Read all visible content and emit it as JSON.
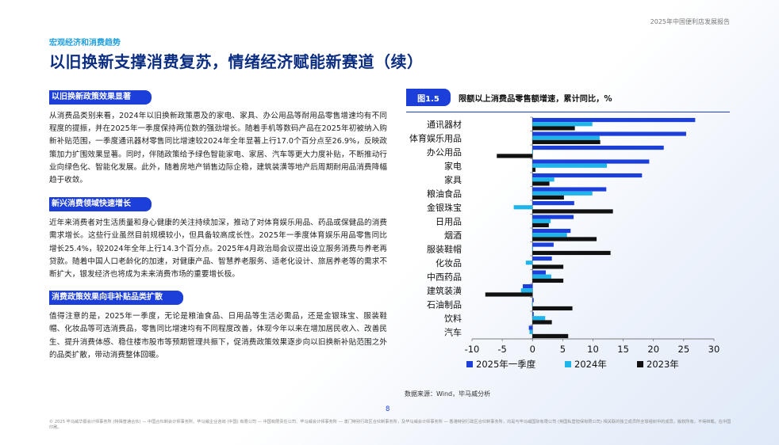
{
  "header": {
    "report_tag": "2025年中国便利店发展报告",
    "section_tag": "宏观经济和消费趋势",
    "title": "以旧换新支撑消费复苏，情绪经济赋能新赛道（续）"
  },
  "sections": [
    {
      "heading": "以旧换新政策效果显著",
      "text": "从消费品类别来看，2024年以旧换新政策惠及的家电、家具、办公用品等耐用品零售增速均有不同程度的提振，并在2025年一季度保持两位数的强劲增长。随着手机等数码产品在2025年初被纳入购新补贴范围，一季度通讯器材零售同比增速较2024年全年显著上行17.0个百分点至26.9%，反映政策加力扩围效果显著。同时，伴随政策给予绿色智能家电、家居、汽车等更大力度补贴，不断推动行业向绿色化、智能化发展。此外，随着房地产销售边际企稳，建筑装潢等地产后周期耐用品消费降幅趋于收敛。"
    },
    {
      "heading": "新兴消费领域快速增长",
      "text": "近年来消费者对生活质量和身心健康的关注持续加深，推动了对体育娱乐用品、药品或保健品的消费需求增长。这些行业虽然目前规模较小，但具备较高成长性。2025年一季度体育娱乐用品零售同比增长25.4%，较2024年全年上行14.3个百分点。2025年4月政治局会议提出设立服务消费与养老再贷款。随着中国人口老龄化的加速，对健康产品、智慧养老服务、适老化设计、旅居养老等的需求不断扩大，银发经济也将成为未来消费市场的重要增长极。"
    },
    {
      "heading": "消费政策效果向非补贴品类扩散",
      "text": "值得注意的是，2025年一季度，无论是粮油食品、日用品等生活必需品，还是金银珠宝、服装鞋帽、化妆品等可选消费品，零售同比增速均有不同程度改善，体现今年以来在增加居民收入、改善民生、提升消费体感、稳住楼市股市等预期管理共振下，促消费政策效果逐步向以旧换新补贴范围之外的品类扩散，带动消费整体回暖。"
    }
  ],
  "figure": {
    "badge": "图1.5",
    "title": "限额以上消费品零售额增速，累计同比，%",
    "source": "数据来源：Wind，毕马威分析"
  },
  "chart_data": {
    "type": "bar",
    "orientation": "horizontal",
    "categories": [
      "通讯器材",
      "体育娱乐用品",
      "办公用品",
      "家电",
      "家具",
      "粮油食品",
      "金银珠宝",
      "日用品",
      "烟酒",
      "服装鞋帽",
      "化妆品",
      "中西药品",
      "建筑装潢",
      "石油制品",
      "饮料",
      "汽车"
    ],
    "series": [
      {
        "name": "2025年一季度",
        "color": "#1c3fd9",
        "values": [
          26.9,
          25.4,
          21.7,
          19.3,
          18.1,
          12.2,
          6.9,
          6.8,
          6.3,
          3.5,
          3.2,
          2.2,
          -1.6,
          0.2,
          0.2,
          -0.6
        ]
      },
      {
        "name": "2024年",
        "color": "#1fb4ea",
        "values": [
          9.9,
          11.1,
          0.1,
          12.3,
          3.6,
          9.9,
          -3.1,
          3.0,
          5.7,
          0.1,
          -1.1,
          3.1,
          -1.9,
          -0.1,
          2.1,
          -0.5
        ]
      },
      {
        "name": "2023年",
        "color": "#111111",
        "values": [
          7.0,
          11.2,
          -5.9,
          0.5,
          2.8,
          5.2,
          13.3,
          2.7,
          10.6,
          12.9,
          5.1,
          5.1,
          -7.8,
          6.6,
          3.2,
          5.9
        ]
      }
    ],
    "xlim": [
      -10,
      30
    ],
    "xticks": [
      -10,
      -5,
      0,
      5,
      10,
      15,
      20,
      25,
      30
    ],
    "grid": false,
    "legend": "bottom"
  },
  "footer": {
    "page_number": "8",
    "note": "© 2025 毕马威华振会计师事务所 (特殊普通合伙) — 中国合伙制会计师事务所、毕马威企业咨询 (中国) 有限公司 — 中国有限责任公司、毕马威会计师事务所 — 澳门特别行政区合伙制事务所，及毕马威会计师事务所 — 香港特别行政区合伙制事务所，均是与毕马威国际有限公司 (英国私营担保有限公司) 相关联的独立成员所全球组织中的成员。版权所有，不得转载。在中国印刷。"
  }
}
